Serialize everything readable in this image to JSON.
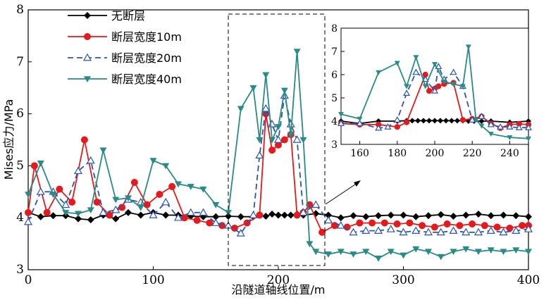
{
  "chart_data": [
    {
      "type": "line",
      "xlabel": "沿隧道轴线位置/m",
      "ylabel": "Mises应力/MPa",
      "xlim": [
        0,
        400
      ],
      "ylim": [
        3,
        8
      ],
      "xticks": [
        "0",
        "100",
        "200",
        "300",
        "400"
      ],
      "yticks": [
        "3",
        "4",
        "5",
        "6",
        "7",
        "8"
      ],
      "legend_position": "top-left",
      "series": [
        {
          "name": "无断层",
          "color": "#000000",
          "marker": "diamond",
          "dash": "solid",
          "x": [
            0,
            10,
            20,
            30,
            40,
            50,
            60,
            70,
            80,
            90,
            100,
            110,
            120,
            130,
            140,
            150,
            160,
            170,
            180,
            185,
            190,
            195,
            200,
            205,
            210,
            215,
            220,
            230,
            240,
            250,
            260,
            270,
            280,
            290,
            300,
            310,
            320,
            330,
            340,
            350,
            360,
            370,
            380,
            390,
            400
          ],
          "y": [
            4.1,
            4.02,
            4.04,
            4.04,
            3.98,
            3.96,
            4.05,
            3.98,
            4.1,
            4.05,
            4.1,
            4.05,
            4.05,
            4.03,
            4.02,
            4.02,
            4.03,
            4.02,
            4.02,
            4.05,
            4.03,
            4.07,
            4.05,
            4.05,
            4.05,
            4.07,
            4.05,
            4.08,
            4.05,
            4.0,
            4.04,
            4.02,
            4.04,
            4.05,
            4.05,
            4.02,
            4.04,
            4.06,
            4.03,
            4.05,
            4.07,
            4.04,
            4.05,
            4.04,
            4.02
          ]
        },
        {
          "name": "断层宽度10m",
          "color": "#e41a1c",
          "marker": "circle",
          "dash": "solid",
          "x": [
            0,
            5,
            15,
            25,
            35,
            45,
            55,
            65,
            75,
            85,
            95,
            105,
            115,
            125,
            135,
            145,
            155,
            165,
            175,
            185,
            190,
            195,
            200,
            205,
            210,
            215,
            220,
            225,
            235,
            245,
            255,
            265,
            275,
            285,
            295,
            305,
            315,
            325,
            335,
            345,
            355,
            365,
            375,
            385,
            395,
            400
          ],
          "y": [
            4.1,
            5.0,
            4.1,
            4.55,
            4.3,
            5.5,
            4.3,
            4.05,
            4.2,
            4.68,
            4.25,
            4.45,
            4.6,
            4.0,
            3.95,
            3.9,
            3.85,
            3.8,
            3.9,
            4.05,
            6.0,
            5.3,
            5.4,
            5.5,
            5.6,
            4.05,
            4.1,
            4.25,
            3.72,
            3.85,
            3.82,
            3.9,
            3.9,
            3.9,
            3.88,
            3.9,
            3.85,
            3.82,
            3.88,
            3.85,
            3.88,
            3.85,
            3.82,
            3.8,
            3.85,
            3.85
          ]
        },
        {
          "name": "断层宽度20m",
          "color": "#2b55b0",
          "marker": "triangle-up",
          "dash": "dash",
          "x": [
            0,
            10,
            20,
            30,
            40,
            50,
            60,
            70,
            80,
            90,
            100,
            110,
            120,
            130,
            140,
            150,
            160,
            170,
            180,
            185,
            190,
            195,
            200,
            205,
            210,
            215,
            220,
            230,
            240,
            250,
            260,
            270,
            280,
            290,
            300,
            310,
            320,
            330,
            340,
            350,
            360,
            370,
            380,
            390,
            400
          ],
          "y": [
            3.92,
            4.5,
            4.5,
            4.25,
            4.9,
            5.1,
            4.1,
            4.15,
            4.35,
            4.3,
            4.05,
            4.3,
            4.0,
            4.1,
            4.1,
            3.9,
            3.85,
            3.7,
            4.05,
            5.2,
            6.1,
            5.8,
            5.5,
            6.35,
            5.8,
            5.5,
            4.1,
            4.25,
            3.95,
            3.85,
            3.72,
            3.75,
            3.75,
            3.78,
            3.72,
            3.75,
            3.72,
            3.72,
            3.75,
            3.72,
            3.72,
            3.75,
            3.72,
            3.75,
            3.78
          ]
        },
        {
          "name": "断层宽度40m",
          "color": "#2a8a86",
          "marker": "triangle-down",
          "dash": "solid",
          "x": [
            0,
            10,
            20,
            30,
            40,
            50,
            60,
            70,
            80,
            90,
            100,
            110,
            120,
            130,
            140,
            150,
            160,
            170,
            180,
            185,
            190,
            195,
            200,
            205,
            210,
            215,
            220,
            225,
            230,
            240,
            250,
            260,
            270,
            280,
            290,
            300,
            310,
            320,
            330,
            340,
            350,
            360,
            370,
            380,
            390,
            400
          ],
          "y": [
            4.45,
            5.05,
            4.45,
            4.1,
            4.08,
            4.15,
            5.3,
            4.35,
            4.38,
            4.2,
            5.1,
            5.0,
            4.65,
            4.6,
            4.55,
            4.25,
            4.1,
            6.1,
            6.5,
            5.5,
            6.75,
            5.5,
            5.75,
            6.45,
            5.6,
            7.2,
            5.5,
            3.5,
            3.35,
            3.3,
            3.35,
            3.3,
            3.35,
            3.22,
            3.35,
            3.28,
            3.4,
            3.35,
            3.25,
            3.35,
            3.4,
            3.35,
            3.38,
            3.35,
            3.38,
            3.35
          ]
        }
      ]
    },
    {
      "type": "line",
      "xlim": [
        150,
        250
      ],
      "ylim": [
        3,
        8
      ],
      "xticks": [
        "160",
        "180",
        "200",
        "220",
        "240"
      ],
      "yticks": [
        "3",
        "4",
        "5",
        "6",
        "7",
        "8"
      ],
      "series": [
        {
          "color": "#000000",
          "marker": "diamond",
          "dash": "solid",
          "x": [
            150,
            160,
            170,
            180,
            185,
            188,
            191,
            194,
            197,
            200,
            203,
            206,
            209,
            212,
            215,
            218,
            221,
            225,
            230,
            240,
            250
          ],
          "y": [
            4.0,
            3.9,
            4.0,
            4.0,
            4.02,
            4.02,
            4.02,
            4.02,
            4.02,
            4.02,
            4.02,
            4.02,
            4.02,
            4.02,
            4.02,
            4.0,
            4.0,
            4.0,
            4.0,
            3.95,
            4.0
          ]
        },
        {
          "color": "#e41a1c",
          "marker": "circle",
          "dash": "solid",
          "x": [
            150,
            160,
            170,
            180,
            185,
            195,
            197,
            200,
            202,
            205,
            210,
            215,
            220,
            225,
            230,
            235,
            240,
            245,
            250
          ],
          "y": [
            3.9,
            3.85,
            3.85,
            3.75,
            3.95,
            6.0,
            5.3,
            5.4,
            5.5,
            5.6,
            5.65,
            4.05,
            4.1,
            4.2,
            3.9,
            3.7,
            3.85,
            3.88,
            3.85
          ]
        },
        {
          "color": "#2b55b0",
          "marker": "triangle-up",
          "dash": "dash",
          "x": [
            150,
            160,
            170,
            175,
            180,
            185,
            190,
            195,
            200,
            202,
            205,
            210,
            215,
            220,
            225,
            230,
            235,
            240,
            245,
            250
          ],
          "y": [
            3.9,
            3.9,
            3.7,
            3.75,
            4.05,
            5.2,
            6.1,
            5.8,
            5.3,
            6.35,
            5.8,
            6.1,
            5.5,
            4.05,
            4.2,
            3.85,
            3.75,
            3.75,
            3.72,
            3.72
          ]
        },
        {
          "color": "#2a8a86",
          "marker": "triangle-down",
          "dash": "solid",
          "x": [
            150,
            160,
            170,
            180,
            185,
            190,
            195,
            200,
            205,
            210,
            215,
            218,
            222,
            225,
            230,
            240,
            250
          ],
          "y": [
            4.3,
            4.1,
            6.1,
            6.5,
            5.5,
            6.75,
            5.5,
            6.45,
            5.7,
            5.6,
            5.5,
            7.2,
            4.05,
            3.8,
            3.45,
            3.3,
            3.25
          ]
        }
      ]
    }
  ]
}
